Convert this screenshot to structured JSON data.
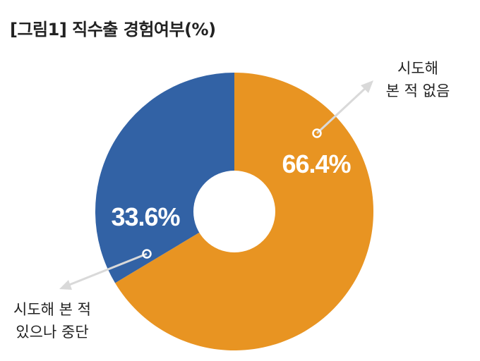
{
  "title": "[그림1] 직수출 경험여부(%)",
  "chart_data": {
    "type": "pie",
    "title": "[그림1] 직수출 경험여부(%)",
    "donut": true,
    "categories": [
      "시도해 본 적 없음",
      "시도해 본 적 있으나 중단"
    ],
    "values": [
      66.4,
      33.6
    ],
    "value_labels": [
      "66.4%",
      "33.6%"
    ],
    "colors": [
      "#E89422",
      "#3262A5"
    ],
    "annotation_lines": [
      [
        "시도해",
        "본 적 없음"
      ],
      [
        "시도해 본 적",
        "있으나 중단"
      ]
    ]
  }
}
